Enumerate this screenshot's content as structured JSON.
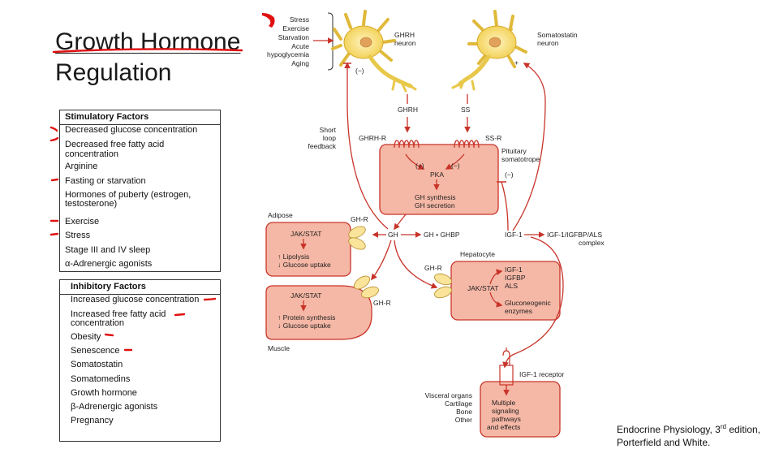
{
  "title": {
    "line1": "Growth Hormone",
    "line2": "Regulation"
  },
  "stimulatory": {
    "header": "Stimulatory Factors",
    "items": [
      "Decreased glucose concentration",
      "Decreased free fatty acid concentration",
      "Arginine",
      "Fasting or starvation",
      "Hormones of puberty (estrogen,",
      "testosterone)",
      "Exercise",
      "Stress",
      "Stage III and IV sleep",
      "α-Adrenergic agonists"
    ]
  },
  "inhibitory": {
    "header": "Inhibitory Factors",
    "items": [
      "Increased glucose concentration",
      "Increased free fatty acid",
      "concentration",
      "Obesity",
      "Senescence",
      "Somatostatin",
      "Somatomedins",
      "Growth hormone",
      "β-Adrenergic agonists",
      "Pregnancy"
    ]
  },
  "diagram": {
    "inputs": [
      "Stress",
      "Exercise",
      "Starvation",
      "Acute",
      "hypoglycemia",
      "Aging"
    ],
    "ghrh_neuron": [
      "GHRH",
      "neuron"
    ],
    "somatostatin_neuron": [
      "Somatostatin",
      "neuron"
    ],
    "minus": "(−)",
    "plus": "+",
    "ghrh": "GHRH",
    "ss": "SS",
    "ghrh_r": "GHRH-R",
    "ss_r": "SS-R",
    "short_loop": [
      "Short",
      "loop",
      "feedback"
    ],
    "pituitary": [
      "Pituitary",
      "somatotrope"
    ],
    "plus_sign": "(+)",
    "pka": "PKA",
    "gh_synth": [
      "GH synthesis",
      "GH secretion"
    ],
    "gh": "GH",
    "gh_ghbp": "GH • GHBP",
    "igf1": "IGF-1",
    "igf_complex": [
      "IGF-1/IGFBP/ALS",
      "complex"
    ],
    "adipose": "Adipose",
    "gh_r": "GH-R",
    "jak_stat": "JAK/STAT",
    "lipolysis": "↑ Lipolysis",
    "glucose_uptake": "↓ Glucose uptake",
    "protein_synth": "↑ Protein synthesis",
    "muscle": "Muscle",
    "hepatocyte": "Hepatocyte",
    "hep_products": [
      "IGF-1",
      "IGFBP",
      "ALS"
    ],
    "gluconeogenic": [
      "Gluconeogenic",
      "enzymes"
    ],
    "igf1_receptor": "IGF-1 receptor",
    "targets": [
      "Visceral organs",
      "Cartilage",
      "Bone",
      "Other"
    ],
    "signaling": [
      "Multiple",
      "signaling",
      "pathways",
      "and effects"
    ]
  },
  "credit": {
    "line1a": "Endocrine Physiology, 3",
    "sup": "rd",
    "line1b": " edition,",
    "line2": "Porterfield and White."
  },
  "colors": {
    "annotation_red": "#e01010",
    "arrow_red": "#c8342a",
    "cell_fill": "#f6b8a6",
    "neuron_yellow": "#f7e27a"
  }
}
